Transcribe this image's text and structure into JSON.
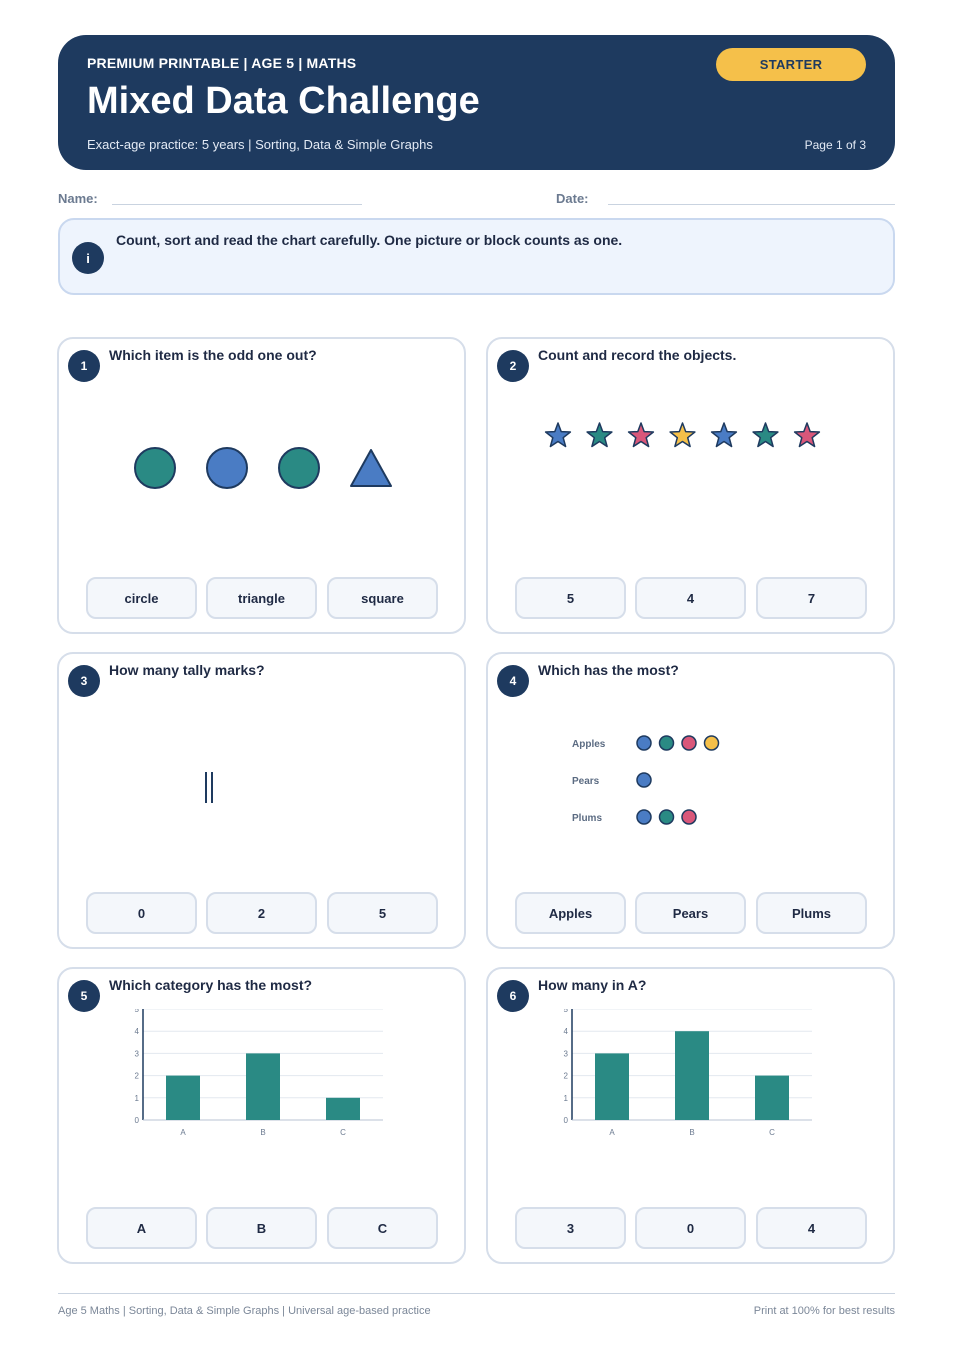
{
  "header": {
    "kicker": "PREMIUM PRINTABLE | AGE 5 | MATHS",
    "title": "Mixed Data Challenge",
    "subtitle": "Exact-age practice: 5 years | Sorting, Data & Simple Graphs",
    "badge": "STARTER",
    "page": "Page 1 of 3"
  },
  "fields": {
    "name_label": "Name:",
    "date_label": "Date:"
  },
  "info": {
    "icon": "i",
    "text": "Count, sort and read the chart carefully. One picture or block counts as one."
  },
  "colors": {
    "navy": "#1e3a5f",
    "teal": "#2a8a84",
    "blue": "#4a7cc4",
    "pink": "#d9577a",
    "yellow": "#f5c04a"
  },
  "questions": [
    {
      "number": "1",
      "prompt": "Which item is the odd one out?",
      "shapes": [
        "circle-teal",
        "circle-blue",
        "circle-teal",
        "triangle-blue"
      ],
      "options": [
        "circle",
        "triangle",
        "square"
      ]
    },
    {
      "number": "2",
      "prompt": "Count and record the objects.",
      "stars": [
        "blue",
        "teal",
        "pink",
        "yellow",
        "blue",
        "teal",
        "pink"
      ],
      "options": [
        "5",
        "4",
        "7"
      ]
    },
    {
      "number": "3",
      "prompt": "How many tally marks?",
      "tally_count": 2,
      "options": [
        "0",
        "2",
        "5"
      ]
    },
    {
      "number": "4",
      "prompt": "Which has the most?",
      "pictogram": [
        {
          "label": "Apples",
          "dots": [
            "blue",
            "teal",
            "pink",
            "yellow"
          ]
        },
        {
          "label": "Pears",
          "dots": [
            "blue"
          ]
        },
        {
          "label": "Plums",
          "dots": [
            "blue",
            "teal",
            "pink"
          ]
        }
      ],
      "options": [
        "Apples",
        "Pears",
        "Plums"
      ]
    },
    {
      "number": "5",
      "prompt": "Which category has the most?",
      "options": [
        "A",
        "B",
        "C"
      ]
    },
    {
      "number": "6",
      "prompt": "How many in A?",
      "options": [
        "3",
        "0",
        "4"
      ]
    }
  ],
  "chart_data": [
    {
      "type": "bar",
      "categories": [
        "A",
        "B",
        "C"
      ],
      "values": [
        2,
        3,
        1
      ],
      "ylim": [
        0,
        5
      ],
      "yticks": [
        "0",
        "1",
        "2",
        "3",
        "4",
        "5"
      ],
      "grid": true,
      "title": "",
      "xlabel": "",
      "ylabel": ""
    },
    {
      "type": "bar",
      "categories": [
        "A",
        "B",
        "C"
      ],
      "values": [
        3,
        4,
        2
      ],
      "ylim": [
        0,
        5
      ],
      "yticks": [
        "0",
        "1",
        "2",
        "3",
        "4",
        "5"
      ],
      "grid": true,
      "title": "",
      "xlabel": "",
      "ylabel": ""
    }
  ],
  "footer": {
    "left": "Age 5 Maths | Sorting, Data & Simple Graphs | Universal age-based practice",
    "right": "Print at 100% for best results"
  }
}
